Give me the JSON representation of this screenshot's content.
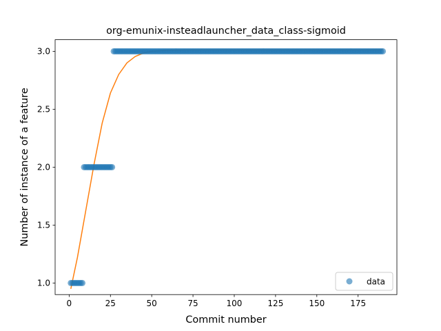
{
  "chart_data": {
    "type": "scatter",
    "title": "org-emunix-insteadlauncher_data_class-sigmoid",
    "xlabel": "Commit number",
    "ylabel": "Number of instance of a feature",
    "xlim": [
      -8.5,
      198.5
    ],
    "ylim": [
      0.9,
      3.1
    ],
    "xticks": [
      0,
      25,
      50,
      75,
      100,
      125,
      150,
      175
    ],
    "yticks": [
      1.0,
      1.5,
      2.0,
      2.5,
      3.0
    ],
    "xtick_labels": [
      "0",
      "25",
      "50",
      "75",
      "100",
      "125",
      "150",
      "175"
    ],
    "ytick_labels": [
      "1.0",
      "1.5",
      "2.0",
      "2.5",
      "3.0"
    ],
    "grid": false,
    "legend_position": "lower-right",
    "colors": {
      "data": "#1f77b4",
      "fit": "#ff7f0e"
    },
    "series": [
      {
        "name": "data",
        "kind": "scatter",
        "segments": [
          {
            "x_start": 1,
            "x_end": 8,
            "y": 1.0
          },
          {
            "x_start": 9,
            "x_end": 26,
            "y": 2.0
          },
          {
            "x_start": 27,
            "x_end": 190,
            "y": 3.0
          }
        ]
      },
      {
        "kind": "line",
        "x": [
          1,
          5,
          10,
          15,
          20,
          25,
          30,
          35,
          40,
          45,
          50,
          60,
          70,
          80,
          100,
          125,
          150,
          175,
          190
        ],
        "y": [
          0.95,
          1.22,
          1.62,
          2.02,
          2.38,
          2.64,
          2.8,
          2.9,
          2.955,
          2.985,
          3.0,
          3.01,
          3.012,
          3.013,
          3.013,
          3.013,
          3.013,
          3.013,
          3.013
        ]
      }
    ]
  }
}
